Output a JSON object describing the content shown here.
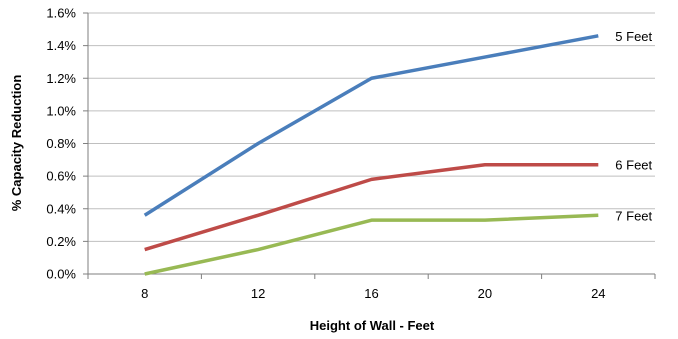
{
  "chart_data": {
    "type": "line",
    "title": "",
    "xlabel": "Height of Wall - Feet",
    "ylabel": "% Capacity Reduction",
    "x": [
      8,
      12,
      16,
      20,
      24
    ],
    "x_tick_labels": [
      "8",
      "12",
      "16",
      "20",
      "24"
    ],
    "ylim": [
      0,
      1.6
    ],
    "y_ticks": [
      0,
      0.2,
      0.4,
      0.6,
      0.8,
      1.0,
      1.2,
      1.4,
      1.6
    ],
    "y_tick_labels": [
      "0.0%",
      "0.2%",
      "0.4%",
      "0.6%",
      "0.8%",
      "1.0%",
      "1.2%",
      "1.4%",
      "1.6%"
    ],
    "grid": true,
    "legend": "direct labels at line ends",
    "series": [
      {
        "name": "5 Feet",
        "color": "#4a7ebb",
        "values": [
          0.36,
          0.8,
          1.2,
          1.33,
          1.46
        ]
      },
      {
        "name": "6 Feet",
        "color": "#be4b48",
        "values": [
          0.15,
          0.36,
          0.58,
          0.67,
          0.67
        ]
      },
      {
        "name": "7 Feet",
        "color": "#98b954",
        "values": [
          0.0,
          0.15,
          0.33,
          0.33,
          0.36
        ]
      }
    ]
  }
}
